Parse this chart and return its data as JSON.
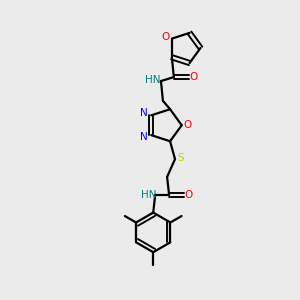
{
  "background_color": "#ebebeb",
  "atom_colors": {
    "N": "#0000ff",
    "O": "#ff0000",
    "S": "#cccc00",
    "NH": "#008080",
    "C": "#000000"
  },
  "bond_color": "#000000",
  "figsize": [
    3.0,
    3.0
  ],
  "dpi": 100
}
